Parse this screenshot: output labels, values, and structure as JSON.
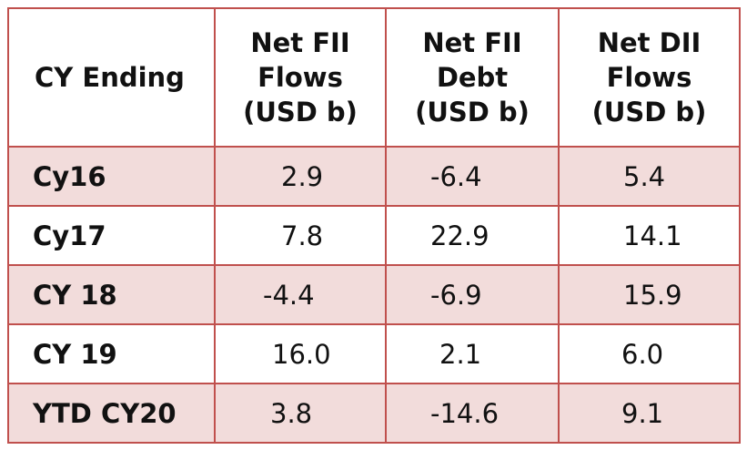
{
  "table": {
    "headers": [
      "CY Ending",
      "Net FII\nFlows\n(USD b)",
      "Net FII\nDebt\n(USD b)",
      "Net DII\nFlows\n(USD b)"
    ],
    "rows": [
      {
        "label": "Cy16",
        "values": [
          "2.9",
          "-6.4",
          "5.4"
        ]
      },
      {
        "label": "Cy17",
        "values": [
          "7.8",
          "22.9",
          "14.1"
        ]
      },
      {
        "label": "CY 18",
        "values": [
          "-4.4",
          "-6.9",
          "15.9"
        ]
      },
      {
        "label": "CY 19",
        "values": [
          "16.0",
          "2.1",
          "6.0"
        ]
      },
      {
        "label": "YTD CY20",
        "values": [
          "3.8",
          "-14.6",
          "9.1"
        ]
      }
    ],
    "colors": {
      "border": "#c0504d",
      "shaded_row": "#f2dcdb"
    }
  }
}
